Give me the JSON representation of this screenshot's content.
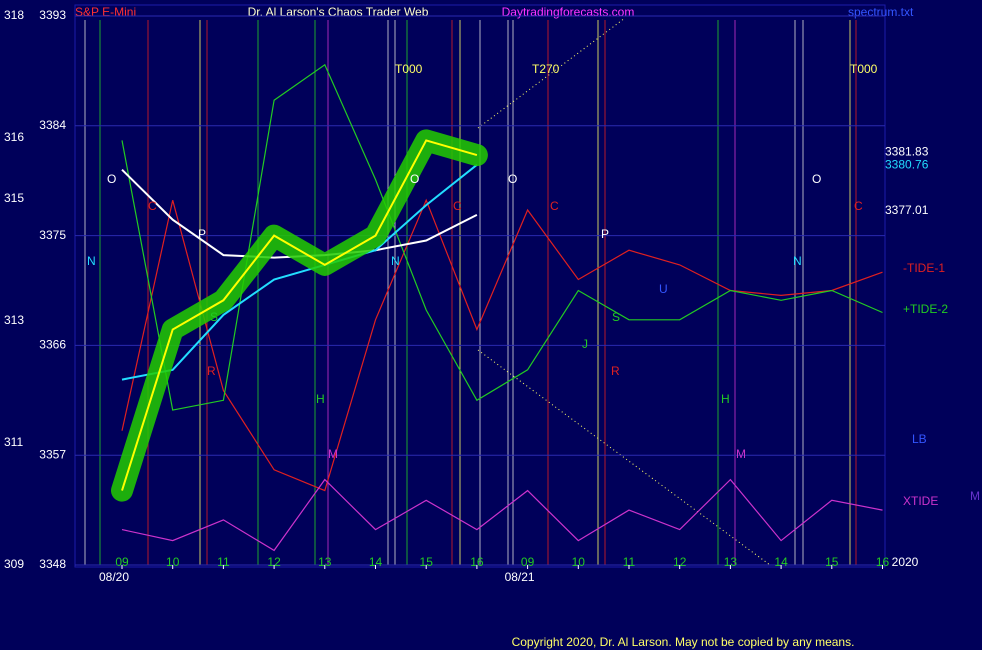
{
  "chart_data": {
    "type": "line",
    "subtitle": "S&P E-Mini",
    "title": "Dr. Al Larson's Chaos Trader Web",
    "site": "Daytradingforecasts.com",
    "file": "spectrum.txt",
    "copyright": "Copyright 2020, Dr. Al Larson. May not be copied by any means.",
    "year_label": "2020",
    "categories": [
      "09",
      "10",
      "11",
      "12",
      "13",
      "14",
      "15",
      "16",
      "09",
      "10",
      "11",
      "12",
      "13",
      "14",
      "15",
      "16"
    ],
    "dates": [
      "08/20",
      null,
      null,
      null,
      null,
      null,
      null,
      null,
      "08/21",
      null,
      null,
      null,
      null,
      null,
      null,
      null
    ],
    "ylim": [
      3348,
      3393
    ],
    "yticks": [
      3348,
      3357,
      3366,
      3375,
      3384,
      3393
    ],
    "y2lim": [
      309,
      318
    ],
    "y2ticks": [
      309,
      311,
      313,
      315,
      316,
      318
    ],
    "grid": true,
    "series": [
      {
        "color": "#ffff00",
        "glow": "#22cc00",
        "label_color": "#ffffff",
        "last": 3381.83,
        "values": [
          3354.1,
          3367.3,
          3369.7,
          3375,
          3372.6,
          3375,
          3382.8,
          3381.6,
          null,
          null,
          null,
          null,
          null,
          null,
          null,
          null
        ]
      },
      {
        "color": "#ffffff",
        "label_color": "#ffffff",
        "last": 3377.01,
        "values": [
          3380.4,
          3376.3,
          3373.4,
          3373.2,
          3373.4,
          3373.8,
          3374.6,
          3376.7,
          null,
          null,
          null,
          null,
          null,
          null,
          null,
          null
        ]
      },
      {
        "color": "#22ddff",
        "label_color": "#22ddff",
        "last": 3380.76,
        "values": [
          3363.2,
          3364,
          3368.5,
          3371.4,
          3372.6,
          3373.8,
          3377.5,
          3380.8,
          null,
          null,
          null,
          null,
          null,
          null,
          null,
          null
        ]
      },
      {
        "name": "-TIDE-1",
        "color": "#e02020",
        "values": [
          3359,
          3377.9,
          3362.3,
          3355.8,
          3354.1,
          3368.1,
          3377.9,
          3367.3,
          3377.1,
          3371.4,
          3373.8,
          3372.6,
          3370.5,
          3370.1,
          3370.5,
          3372
        ]
      },
      {
        "name": "+TIDE-2",
        "color": "#22cc22",
        "values": [
          3382.8,
          3360.7,
          3361.5,
          3386.1,
          3389,
          3379.6,
          3368.9,
          3361.5,
          3364,
          3370.5,
          3368.1,
          3368.1,
          3370.5,
          3369.7,
          3370.5,
          3368.7
        ]
      },
      {
        "name": "XTIDE",
        "color": "#cc33cc",
        "values": [
          3350.9,
          3350,
          3351.7,
          3349.2,
          3355,
          3350.9,
          3353.3,
          3350.9,
          3354.1,
          3350,
          3352.5,
          3350.9,
          3355,
          3350,
          3353.3,
          3352.5
        ]
      }
    ],
    "other_labels": [
      "LB",
      "M"
    ],
    "annotations": [
      "T000",
      "T270",
      "T000",
      "O",
      "O",
      "O",
      "O",
      "C",
      "C",
      "C",
      "C",
      "P",
      "P",
      "N",
      "N",
      "N",
      "S",
      "S",
      "R",
      "R",
      "H",
      "H",
      "M",
      "M",
      "J",
      "U"
    ]
  }
}
